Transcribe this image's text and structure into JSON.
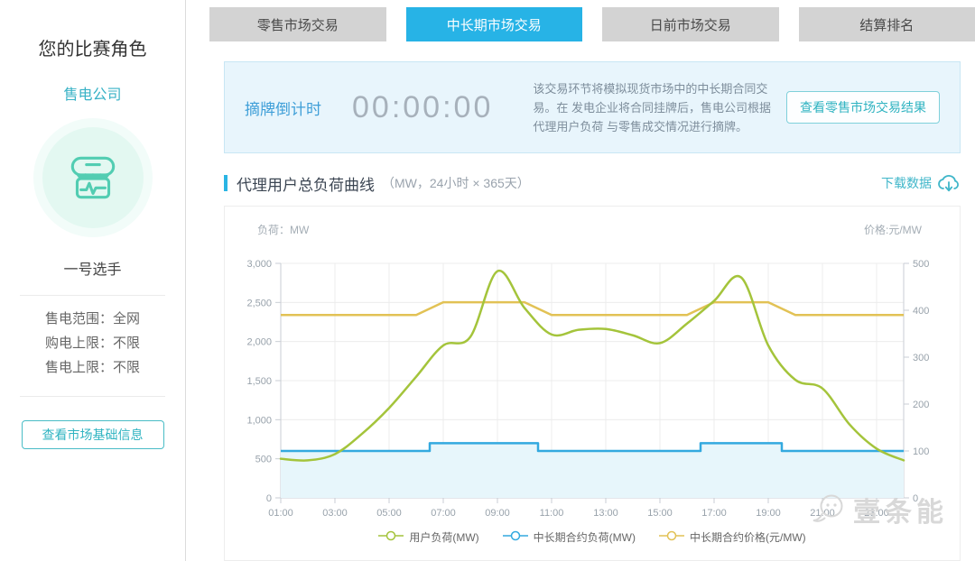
{
  "colors": {
    "accent_teal": "#2fb3c1",
    "tab_active_bg": "#27b3e6",
    "tab_inactive_bg": "#d3d3d3",
    "countdown_blue": "#3f9fd8",
    "banner_bg": "#e8f5fc",
    "user_load_line": "#a4c43b",
    "contract_load_line": "#33a9df",
    "contract_price_line": "#e2c255"
  },
  "sidebar": {
    "title": "您的比赛角色",
    "role": "售电公司",
    "player": "一号选手",
    "stat_separator": "：",
    "stats": [
      {
        "label": "售电范围",
        "value": "全网"
      },
      {
        "label": "购电上限",
        "value": "不限"
      },
      {
        "label": "售电上限",
        "value": "不限"
      }
    ],
    "info_button": "查看市场基础信息"
  },
  "tabs": [
    {
      "name": "tab-retail-market",
      "label": "零售市场交易",
      "active": false
    },
    {
      "name": "tab-mid-long-term-market",
      "label": "中长期市场交易",
      "active": true
    },
    {
      "name": "tab-day-ahead-market",
      "label": "日前市场交易",
      "active": false
    },
    {
      "name": "tab-settlement-ranking",
      "label": "结算排名",
      "active": false
    }
  ],
  "banner": {
    "countdown_label": "摘牌倒计时",
    "countdown_value": "00:00:00",
    "description": "该交易环节将模拟现货市场中的中长期合同交易。在 发电企业将合同挂牌后，售电公司根据代理用户负荷 与零售成交情况进行摘牌。",
    "result_button": "查看零售市场交易结果"
  },
  "section": {
    "title": "代理用户总负荷曲线",
    "subtitle": "（MW，24小时 × 365天）",
    "download_label": "下载数据"
  },
  "watermark": "壹条能",
  "chart_data": {
    "type": "line",
    "x_unit": "hour",
    "x_start_hour": 1,
    "x_end_hour": 24,
    "x_tick_labels": [
      "01:00",
      "03:00",
      "05:00",
      "07:00",
      "09:00",
      "11:00",
      "13:00",
      "15:00",
      "17:00",
      "19:00",
      "21:00",
      "23:00"
    ],
    "left_axis": {
      "title": "负荷：MW",
      "min": 0,
      "max": 3000,
      "tick_labels": [
        "3,000",
        "2,500",
        "2,000",
        "1,500",
        "1,000",
        "500",
        "0"
      ]
    },
    "right_axis": {
      "title": "价格:元/MW",
      "min": 0,
      "max": 500,
      "tick_labels": [
        "500",
        "400",
        "300",
        "200",
        "100",
        "0"
      ]
    },
    "grid": true,
    "legend_position": "bottom",
    "series": [
      {
        "name": "用户负荷(MW)",
        "axis": "left",
        "color": "#a4c43b",
        "line_style": "smooth",
        "values": [
          500,
          480,
          560,
          820,
          1150,
          1550,
          1950,
          2060,
          2900,
          2430,
          2090,
          2150,
          2160,
          2080,
          1980,
          2230,
          2520,
          2820,
          1950,
          1510,
          1400,
          940,
          630,
          480
        ]
      },
      {
        "name": "中长期合约负荷(MW)",
        "axis": "left",
        "color": "#33a9df",
        "line_style": "step-middle",
        "area_fill": "#e7f6fb",
        "values": [
          600,
          600,
          600,
          600,
          600,
          600,
          700,
          700,
          700,
          700,
          600,
          600,
          600,
          600,
          600,
          600,
          700,
          700,
          700,
          600,
          600,
          600,
          600,
          600
        ]
      },
      {
        "name": "中长期合约价格(元/MW)",
        "axis": "right",
        "color": "#e2c255",
        "line_style": "linear",
        "values": [
          390,
          390,
          390,
          390,
          390,
          390,
          417,
          417,
          417,
          417,
          390,
          390,
          390,
          390,
          390,
          390,
          417,
          417,
          417,
          390,
          390,
          390,
          390,
          390
        ]
      }
    ]
  }
}
